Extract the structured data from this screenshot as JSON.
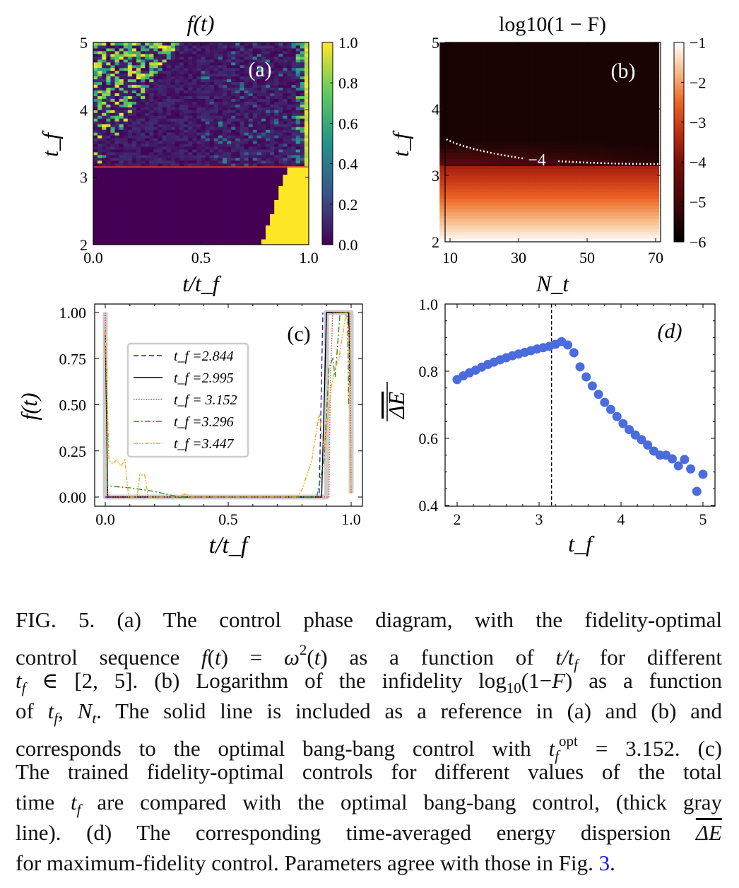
{
  "chart_data": [
    {
      "panel": "a",
      "type": "heatmap",
      "title": "f(t)",
      "label": "(a)",
      "xlabel": "t/t_f",
      "ylabel": "t_f",
      "xlim": [
        0,
        1
      ],
      "ylim": [
        2,
        5
      ],
      "xticks": [
        "0.0",
        "0.5",
        "1.0"
      ],
      "yticks": [
        "2",
        "3",
        "4",
        "5"
      ],
      "colormap": "viridis",
      "colorbar_range": [
        0,
        1
      ],
      "colorbar_ticks": [
        "0.0",
        "0.2",
        "0.4",
        "0.6",
        "0.8",
        "1.0"
      ],
      "reference_line_tf": 3.152,
      "reference_line_color": "#e8492f"
    },
    {
      "panel": "b",
      "type": "heatmap",
      "title": "log10(1 − F)",
      "label": "(b)",
      "xlabel": "N_t",
      "ylabel": "t_f",
      "xlim": [
        8,
        72
      ],
      "ylim": [
        2,
        5
      ],
      "xticks": [
        "10",
        "30",
        "50",
        "70"
      ],
      "yticks": [
        "2",
        "3",
        "4",
        "5"
      ],
      "colormap": "gist_heat",
      "colorbar_range": [
        -6,
        -1
      ],
      "colorbar_ticks": [
        "−6",
        "−5",
        "−4",
        "−3",
        "−2",
        "−1"
      ],
      "contour_level": -4,
      "contour_label": "−4",
      "reference_line_tf": 3.152
    },
    {
      "panel": "c",
      "type": "line",
      "label": "(c)",
      "xlabel": "t/t_f",
      "ylabel": "f(t)",
      "xlim": [
        0,
        1
      ],
      "ylim": [
        0,
        1
      ],
      "xticks": [
        "0.0",
        "0.5",
        "1.0"
      ],
      "yticks": [
        "0.00",
        "0.25",
        "0.50",
        "0.75",
        "1.00"
      ],
      "legend": "upper-left-center",
      "bang_bang": {
        "color": "#cccccc",
        "x": [
          0,
          0,
          0.9,
          0.9,
          1.0,
          1.0
        ],
        "y": [
          1,
          0,
          0,
          1,
          1,
          0.02
        ]
      },
      "series": [
        {
          "name": "t_f =2.844",
          "color": "#1f1fe6",
          "dash": "dashed",
          "x": [
            0,
            0.004,
            0.87,
            0.885
          ],
          "y": [
            0,
            0,
            0,
            1
          ]
        },
        {
          "name": "t_f =2.995",
          "color": "#000000",
          "dash": "solid",
          "x": [
            0,
            0.01,
            0.88,
            0.9,
            0.99,
            0.995
          ],
          "y": [
            0.9,
            0,
            0,
            1,
            1,
            0.6
          ]
        },
        {
          "name": "t_f = 3.152",
          "color": "#e8433a",
          "dash": "dotted",
          "x": [
            0,
            0.01,
            0.91,
            0.915,
            0.925,
            0.995,
            1.0
          ],
          "y": [
            1,
            0,
            0,
            0.6,
            1,
            1,
            0.02
          ]
        },
        {
          "name": "t_f =3.296",
          "color": "#2e8b22",
          "dash": "dashdot",
          "x": [
            0.005,
            0.01,
            0.1,
            0.2,
            0.3,
            0.86,
            0.89,
            0.91,
            0.925,
            0.935,
            0.955,
            0.985,
            0.99
          ],
          "y": [
            0.7,
            0.06,
            0.05,
            0.03,
            0.0,
            0.0,
            0.2,
            0.7,
            0.75,
            0.65,
            1.0,
            1.0,
            0.5
          ]
        },
        {
          "name": "t_f =3.447",
          "color": "#f5a623",
          "dash": "dashdotdot",
          "x": [
            0,
            0.015,
            0.03,
            0.045,
            0.065,
            0.08,
            0.095,
            0.13,
            0.14,
            0.16,
            0.175,
            0.3,
            0.33,
            0.34,
            0.78,
            0.8,
            0.84,
            0.87,
            0.89,
            0.92,
            0.935,
            0.95,
            0.98,
            0.99,
            1.0
          ],
          "y": [
            0.9,
            0.2,
            0.18,
            0.2,
            0.17,
            0.2,
            0.0,
            0.0,
            0.12,
            0.12,
            0.0,
            0.0,
            0.02,
            0.0,
            0.0,
            0.04,
            0.2,
            0.45,
            0.25,
            0.6,
            0.7,
            0.75,
            1.0,
            0.9,
            0.02
          ]
        }
      ]
    },
    {
      "panel": "d",
      "type": "scatter",
      "label": "(d)",
      "xlabel": "t_f",
      "ylabel": "ΔE (time-averaged)",
      "xlim": [
        1.9,
        5.05
      ],
      "ylim": [
        0.4,
        1.0
      ],
      "xticks": [
        "2",
        "3",
        "4",
        "5"
      ],
      "yticks": [
        "0.4",
        "0.6",
        "0.8",
        "1.0"
      ],
      "color": "#4a6cdc",
      "vline_x": 3.152,
      "x": [
        2.0,
        2.075,
        2.15,
        2.225,
        2.3,
        2.375,
        2.45,
        2.525,
        2.6,
        2.675,
        2.75,
        2.825,
        2.9,
        2.975,
        3.05,
        3.125,
        3.2,
        3.275,
        3.35,
        3.425,
        3.5,
        3.575,
        3.65,
        3.725,
        3.8,
        3.875,
        3.95,
        4.025,
        4.1,
        4.175,
        4.25,
        4.325,
        4.4,
        4.475,
        4.55,
        4.625,
        4.7,
        4.775,
        4.85,
        4.925,
        5.0
      ],
      "y": [
        0.775,
        0.786,
        0.795,
        0.803,
        0.812,
        0.82,
        0.827,
        0.834,
        0.84,
        0.846,
        0.851,
        0.856,
        0.861,
        0.866,
        0.87,
        0.874,
        0.88,
        0.888,
        0.878,
        0.855,
        0.813,
        0.783,
        0.756,
        0.731,
        0.707,
        0.686,
        0.665,
        0.644,
        0.626,
        0.61,
        0.596,
        0.58,
        0.562,
        0.55,
        0.55,
        0.539,
        0.518,
        0.537,
        0.509,
        0.442,
        0.493
      ]
    }
  ],
  "caption": [
    [
      {
        "t": "FIG. 5.     (a) The control phase diagram, with the fidelity-optimal"
      }
    ],
    [
      {
        "t": "control sequence "
      },
      {
        "t": "f",
        "s": "i"
      },
      {
        "t": "("
      },
      {
        "t": "t",
        "s": "i"
      },
      {
        "t": ") = "
      },
      {
        "t": "ω",
        "s": "i"
      },
      {
        "t": "2",
        "s": "sup"
      },
      {
        "t": "("
      },
      {
        "t": "t",
        "s": "i"
      },
      {
        "t": ") as a function of "
      },
      {
        "t": "t/t",
        "s": "i"
      },
      {
        "t": "f",
        "s": "sub"
      },
      {
        "t": " for different"
      }
    ],
    [
      {
        "t": "t",
        "s": "i"
      },
      {
        "t": "f",
        "s": "sub"
      },
      {
        "t": " ∈ [2, 5]. (b) Logarithm of the infidelity log"
      },
      {
        "t": "10",
        "s": "subr"
      },
      {
        "t": "(1−"
      },
      {
        "t": "F",
        "s": "i"
      },
      {
        "t": ") as a function"
      }
    ],
    [
      {
        "t": "of "
      },
      {
        "t": "t",
        "s": "i"
      },
      {
        "t": "f",
        "s": "sub"
      },
      {
        "t": ", "
      },
      {
        "t": "N",
        "s": "i"
      },
      {
        "t": "t",
        "s": "sub"
      },
      {
        "t": ". The solid line is included as a reference in (a) and (b) and"
      }
    ],
    [
      {
        "t": "corresponds to the optimal bang-bang control with "
      },
      {
        "t": "t",
        "s": "i"
      },
      {
        "t": "f",
        "s": "sub"
      },
      {
        "t": "opt",
        "s": "sup"
      },
      {
        "t": " = 3.152. (c)"
      }
    ],
    [
      {
        "t": "The trained fidelity-optimal controls for different values of the total"
      }
    ],
    [
      {
        "t": "time "
      },
      {
        "t": "t",
        "s": "i"
      },
      {
        "t": "f",
        "s": "sub"
      },
      {
        "t": " are compared with the optimal bang-bang control, (thick gray"
      }
    ],
    [
      {
        "t": "line).  (d) The corresponding time-averaged energy dispersion "
      },
      {
        "t": "ΔE",
        "s": "over"
      }
    ],
    [
      {
        "t": "for maximum-fidelity control. Parameters agree with those in Fig. "
      },
      {
        "t": "3",
        "s": "link"
      },
      {
        "t": "."
      }
    ]
  ]
}
